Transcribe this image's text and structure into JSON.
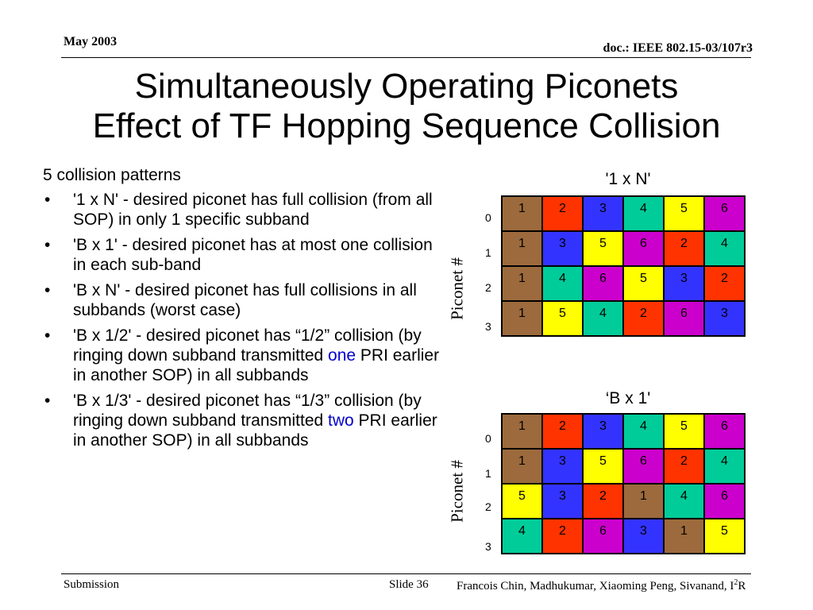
{
  "header": {
    "date": "May 2003",
    "doc_id": "doc.: IEEE 802.15-03/107r3"
  },
  "title": {
    "line1": "Simultaneously Operating Piconets",
    "line2": "Effect of TF Hopping Sequence Collision"
  },
  "body": {
    "intro": "5 collision patterns",
    "bullet_char": "•",
    "bullets": [
      {
        "text": "'1 x N' - desired piconet has full collision (from all SOP) in only 1 specific subband"
      },
      {
        "text": "'B x 1' - desired piconet has at most one collision in each sub-band"
      },
      {
        "text": "'B x N' - desired piconet has full collisions in all subbands (worst case)"
      },
      {
        "before": "'B x 1/2' - desired piconet has “1/2” collision (by ringing down subband transmitted ",
        "highlight": "one",
        "after": " PRI earlier in another SOP) in all subbands"
      },
      {
        "before": "'B x 1/3' - desired piconet has “1/3” collision (by ringing down subband transmitted ",
        "highlight": "two",
        "after": " PRI earlier in another SOP) in all subbands"
      }
    ],
    "highlight_color": "#0000cc"
  },
  "colors": {
    "1": "#9c6a3c",
    "2": "#ff3300",
    "3": "#3333ff",
    "4": "#00cc99",
    "5": "#ffff00",
    "6": "#cc00cc"
  },
  "grids": [
    {
      "title": "'1 x N'",
      "ylabel": "Piconet #",
      "row_labels": [
        "0",
        "1",
        "2",
        "3"
      ],
      "rows": [
        [
          1,
          2,
          3,
          4,
          5,
          6
        ],
        [
          1,
          3,
          5,
          6,
          2,
          4
        ],
        [
          1,
          4,
          6,
          5,
          3,
          2
        ],
        [
          1,
          5,
          4,
          2,
          6,
          3
        ]
      ]
    },
    {
      "title": "‘B x 1'",
      "ylabel": "Piconet #",
      "row_labels": [
        "0",
        "1",
        "2",
        "3"
      ],
      "rows": [
        [
          1,
          2,
          3,
          4,
          5,
          6
        ],
        [
          1,
          3,
          5,
          6,
          2,
          4
        ],
        [
          5,
          3,
          2,
          1,
          4,
          6
        ],
        [
          4,
          2,
          6,
          3,
          1,
          5
        ]
      ]
    }
  ],
  "footer": {
    "left": "Submission",
    "slide": "Slide 36",
    "authors_main": "Francois Chin, Madhukumar, Xiaoming Peng, Sivanand, I",
    "authors_sup": "2",
    "authors_end": "R"
  }
}
